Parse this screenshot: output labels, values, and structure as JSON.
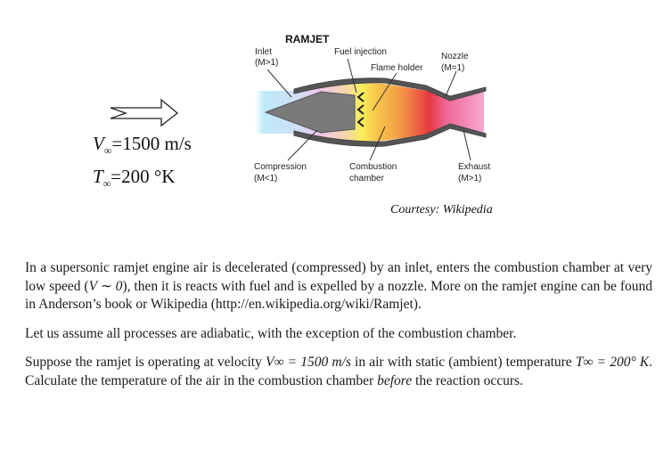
{
  "figure": {
    "title": "RAMJET",
    "labels": {
      "inlet": "Inlet",
      "inlet_mach": "(M>1)",
      "fuel_injection": "Fuel injection",
      "flame_holder": "Flame holder",
      "nozzle": "Nozzle",
      "nozzle_mach": "(M=1)",
      "compression": "Compression",
      "compression_mach": "(M<1)",
      "combustion": "Combustion",
      "chamber": "chamber",
      "exhaust": "Exhaust",
      "exhaust_mach": "(M>1)"
    },
    "courtesy": "Courtesy: Wikipedia"
  },
  "conditions": {
    "velocity_symbol": "V",
    "velocity_sub": "∞",
    "velocity_value": "=1500 m/s",
    "temperature_symbol": "T",
    "temperature_sub": "∞",
    "temperature_value": "=200 °K"
  },
  "body": {
    "para1_a": "In a supersonic ramjet engine air is decelerated (compressed) by an inlet, enters the combustion chamber at very low speed (",
    "para1_math": "V ∼ 0",
    "para1_b": "), then it is reacts with fuel and is expelled by a nozzle. More on the ramjet engine can be found in Anderson’s book or Wikipedia (http://en.wikipedia.org/wiki/Ramjet).",
    "para2": "Let us assume all processes are adiabatic, with the exception of the combustion chamber.",
    "para3_a": "Suppose the ramjet is operating at velocity ",
    "para3_v": "V∞ = 1500 m/s",
    "para3_b": " in air with static (ambient) temperature ",
    "para3_t": "T∞ = 200° K",
    "para3_c": ". Calculate the temperature of the air in the combustion chamber ",
    "para3_before": "before",
    "para3_d": " the reaction occurs."
  },
  "colors": {
    "inlet_gas": "#aee6f7",
    "compression_gas": "#f2c6ee",
    "flame": "#f7e84a",
    "combustion_gas": "#f2a14a",
    "nozzle_gas": "#e8404a",
    "exhaust_gas": "#f27ab6",
    "engine_wall": "#555555",
    "centerbody": "#7a7a7a"
  }
}
